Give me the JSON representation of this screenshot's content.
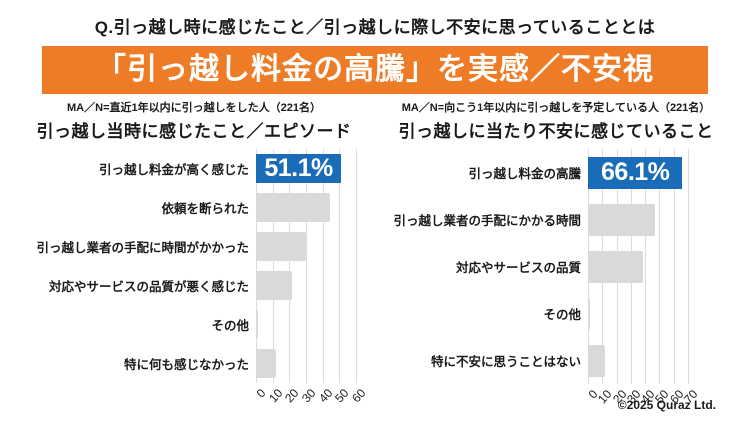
{
  "page": {
    "question_title": "Q.引っ越し時に感じたこと／引っ越しに際し不安に思っていることとは",
    "banner": {
      "text": "「引っ越し料金の高騰」を実感／不安視",
      "bg_color": "#EE7C27",
      "text_color": "#FFFFFF"
    },
    "footer": "©2025 Quraz Ltd."
  },
  "colors": {
    "highlight_bar": "#1B6CB8",
    "bar": "#D9D9D9",
    "gridline": "#DCDCDC",
    "text": "#1A1A1A"
  },
  "chart_data": [
    {
      "type": "bar",
      "orientation": "horizontal",
      "note": "MA／N=直近1年以内に引っ越しをした人（221名）",
      "title": "引っ越し当時に感じたこと／エピソード",
      "categories": [
        "引っ越し料金が高く感じた",
        "依頼を断られた",
        "引っ越し業者の手配に時間がかかった",
        "対応やサービスの品質が悪く感じた",
        "その他",
        "特に何も感じなかった"
      ],
      "values": [
        51.1,
        44.3,
        30.2,
        21.6,
        1.4,
        12.2
      ],
      "highlight_index": 0,
      "highlight_label": "51.1%",
      "xlim": [
        0,
        60
      ],
      "ticks": [
        0,
        10,
        20,
        30,
        40,
        50,
        60
      ],
      "grid": true,
      "legend": "none"
    },
    {
      "type": "bar",
      "orientation": "horizontal",
      "note": "MA／N=向こう1年以内に引っ越しを予定している人（221名）",
      "title": "引っ越しに当たり不安に感じていること",
      "categories": [
        "引っ越し料金の高騰",
        "引っ越し業者の手配にかかる時間",
        "対応やサービスの品質",
        "その他",
        "特に不安に思うことはない"
      ],
      "values": [
        66.1,
        47.0,
        38.2,
        0.9,
        11.8
      ],
      "highlight_index": 0,
      "highlight_label": "66.1%",
      "xlim": [
        0,
        70
      ],
      "ticks": [
        0,
        10,
        20,
        30,
        40,
        50,
        60,
        70
      ],
      "grid": true,
      "legend": "none"
    }
  ]
}
